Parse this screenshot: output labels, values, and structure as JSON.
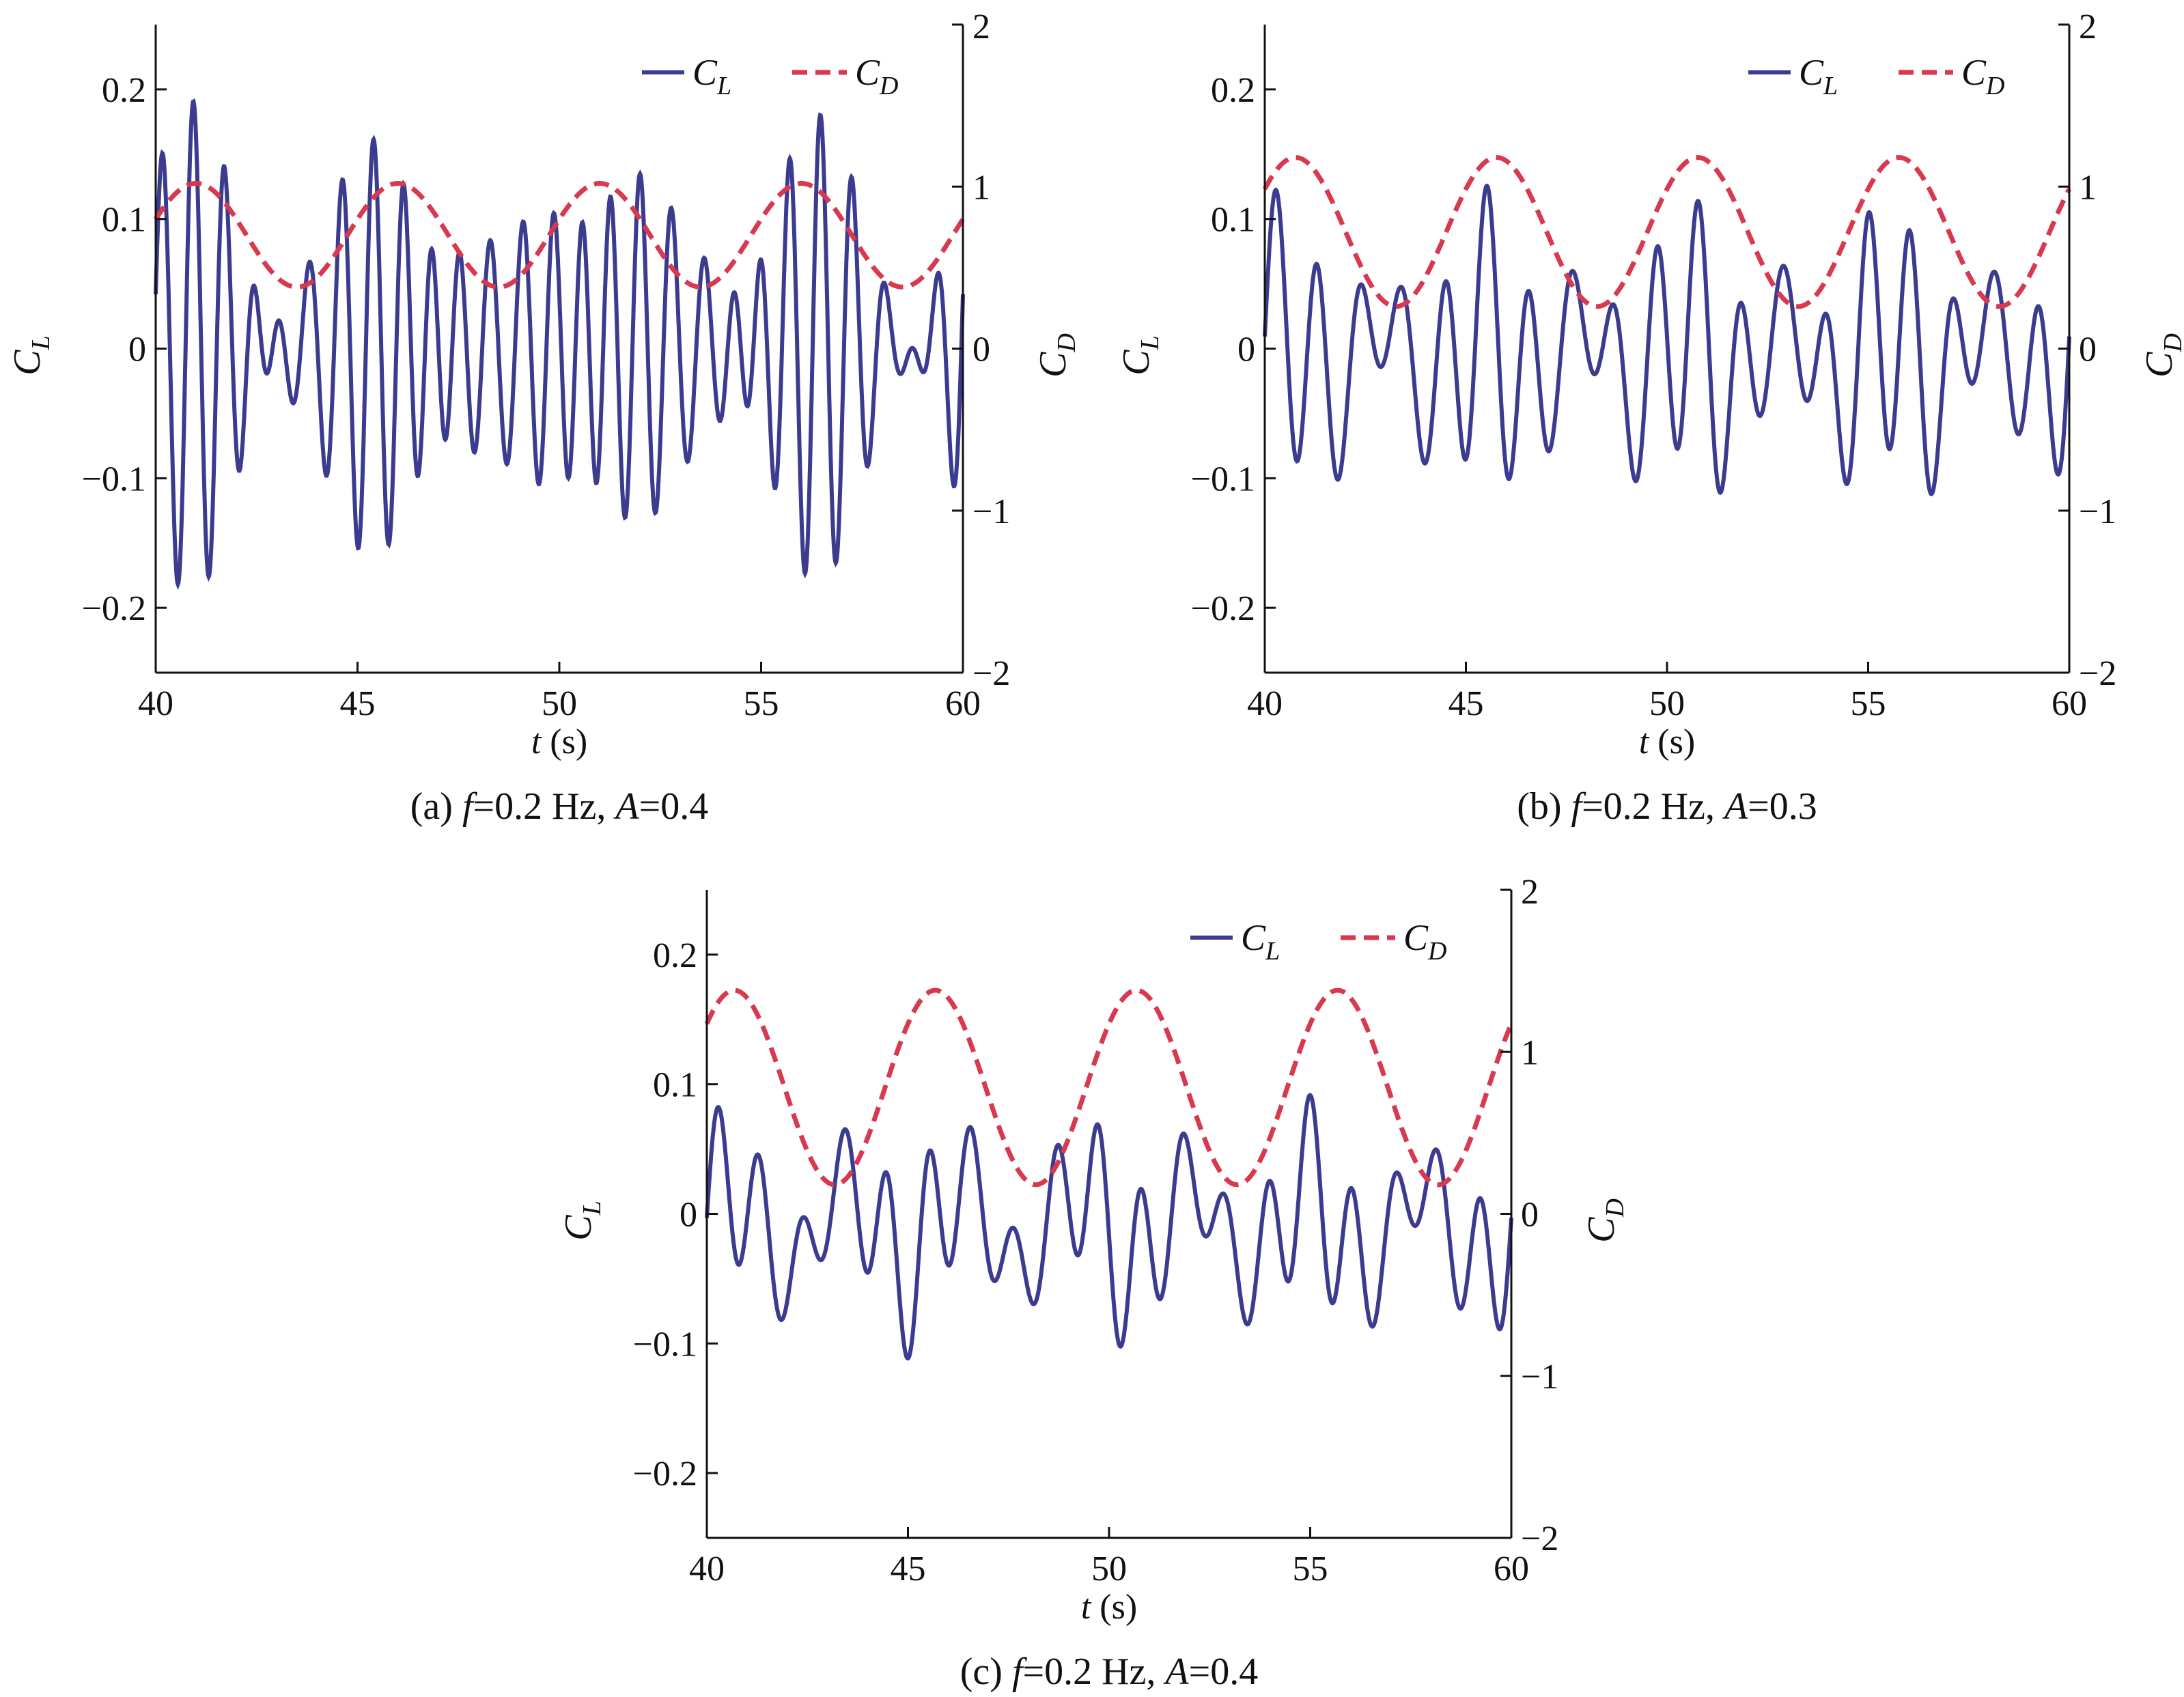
{
  "chart_data": [
    {
      "id": "a",
      "type": "line",
      "caption": {
        "label": "(a)",
        "f_sym": "f",
        "f_val": "=0.2 Hz,",
        "a_sym": "A",
        "a_val": "=0.4"
      },
      "xlabel": {
        "sym": "t",
        "unit": "(s)"
      },
      "ylabel_left": {
        "base": "C",
        "sub": "L"
      },
      "ylabel_right": {
        "base": "C",
        "sub": "D"
      },
      "xlim": [
        40,
        60
      ],
      "ylim_left": [
        -0.25,
        0.25
      ],
      "ylim_right": [
        -2,
        2
      ],
      "xticks": [
        40,
        45,
        50,
        55,
        60
      ],
      "xtick_labels": [
        "40",
        "45",
        "50",
        "55",
        "60"
      ],
      "yticks_left": [
        -0.2,
        -0.1,
        0,
        0.1,
        0.2
      ],
      "ytick_labels_left": [
        "−0.2",
        "−0.1",
        "0",
        "0.1",
        "0.2"
      ],
      "yticks_right": [
        -2,
        -1,
        0,
        1,
        2
      ],
      "ytick_labels_right": [
        "−2",
        "−1",
        "0",
        "1",
        "2"
      ],
      "legend": {
        "placement": "top-right",
        "entries": [
          {
            "base": "C",
            "sub": "L"
          },
          {
            "base": "C",
            "sub": "D"
          }
        ]
      },
      "series": [
        {
          "name": "CL",
          "axis": "left",
          "style": "solid",
          "model": {
            "f1": 1.35,
            "a1": 0.095,
            "mod1_amp": 0.55,
            "mod1_freq": 0.2,
            "mod1_phase": 0.3,
            "f2": 1.1,
            "a2": 0.045,
            "phase2": 1.2,
            "offset": 0.0
          }
        },
        {
          "name": "CD",
          "axis": "right",
          "style": "dashed",
          "model": {
            "mean": 0.7,
            "amp": 0.32,
            "freq": 0.2,
            "phase": 0.6
          }
        }
      ]
    },
    {
      "id": "b",
      "type": "line",
      "caption": {
        "label": "(b)",
        "f_sym": "f",
        "f_val": "=0.2 Hz,",
        "a_sym": "A",
        "a_val": "=0.3"
      },
      "xlabel": {
        "sym": "t",
        "unit": "(s)"
      },
      "ylabel_left": {
        "base": "C",
        "sub": "L"
      },
      "ylabel_right": {
        "base": "C",
        "sub": "D"
      },
      "xlim": [
        40,
        60
      ],
      "ylim_left": [
        -0.25,
        0.25
      ],
      "ylim_right": [
        -2,
        2
      ],
      "xticks": [
        40,
        45,
        50,
        55,
        60
      ],
      "xtick_labels": [
        "40",
        "45",
        "50",
        "55",
        "60"
      ],
      "yticks_left": [
        -0.2,
        -0.1,
        0,
        0.1,
        0.2
      ],
      "ytick_labels_left": [
        "−0.2",
        "−0.1",
        "0",
        "0.1",
        "0.2"
      ],
      "yticks_right": [
        -2,
        -1,
        0,
        1,
        2
      ],
      "ytick_labels_right": [
        "−2",
        "−1",
        "0",
        "1",
        "2"
      ],
      "legend": {
        "placement": "top-right",
        "entries": [
          {
            "base": "C",
            "sub": "L"
          },
          {
            "base": "C",
            "sub": "D"
          }
        ]
      },
      "series": [
        {
          "name": "CL",
          "axis": "left",
          "style": "solid",
          "model": {
            "f1": 0.95,
            "a1": 0.07,
            "mod1_amp": 0.45,
            "mod1_freq": 0.2,
            "mod1_phase": 0.9,
            "f2": 0.4,
            "a2": 0.03,
            "phase2": 0.5,
            "offset": -0.005
          }
        },
        {
          "name": "CD",
          "axis": "right",
          "style": "dashed",
          "model": {
            "mean": 0.72,
            "amp": 0.46,
            "freq": 0.2,
            "phase": 0.9
          }
        }
      ]
    },
    {
      "id": "c",
      "type": "line",
      "caption": {
        "label": "(c)",
        "f_sym": "f",
        "f_val": "=0.2 Hz,",
        "a_sym": "A",
        "a_val": "=0.4"
      },
      "xlabel": {
        "sym": "t",
        "unit": "(s)"
      },
      "ylabel_left": {
        "base": "C",
        "sub": "L"
      },
      "ylabel_right": {
        "base": "C",
        "sub": "D"
      },
      "xlim": [
        40,
        60
      ],
      "ylim_left": [
        -0.25,
        0.25
      ],
      "ylim_right": [
        -2,
        2
      ],
      "xticks": [
        40,
        45,
        50,
        55,
        60
      ],
      "xtick_labels": [
        "40",
        "45",
        "50",
        "55",
        "60"
      ],
      "yticks_left": [
        -0.2,
        -0.1,
        0,
        0.1,
        0.2
      ],
      "ytick_labels_left": [
        "−0.2",
        "−0.1",
        "0",
        "0.1",
        "0.2"
      ],
      "yticks_right": [
        -2,
        -1,
        0,
        1,
        2
      ],
      "ytick_labels_right": [
        "−2",
        "−1",
        "0",
        "1",
        "2"
      ],
      "legend": {
        "placement": "top-right",
        "entries": [
          {
            "base": "C",
            "sub": "L"
          },
          {
            "base": "C",
            "sub": "D"
          }
        ]
      },
      "series": [
        {
          "name": "CL",
          "axis": "left",
          "style": "solid",
          "model": {
            "f1": 0.95,
            "a1": 0.05,
            "mod1_amp": 0.35,
            "mod1_freq": 0.2,
            "mod1_phase": 1.4,
            "f2": 0.35,
            "a2": 0.035,
            "phase2": 0.2,
            "offset": -0.01
          }
        },
        {
          "name": "CD",
          "axis": "right",
          "style": "dashed",
          "model": {
            "mean": 0.78,
            "amp": 0.6,
            "freq": 0.2,
            "phase": 1.0
          }
        }
      ]
    }
  ],
  "colors": {
    "cl": "#3b3b8f",
    "cd": "#d8394e",
    "axis": "#111111"
  }
}
